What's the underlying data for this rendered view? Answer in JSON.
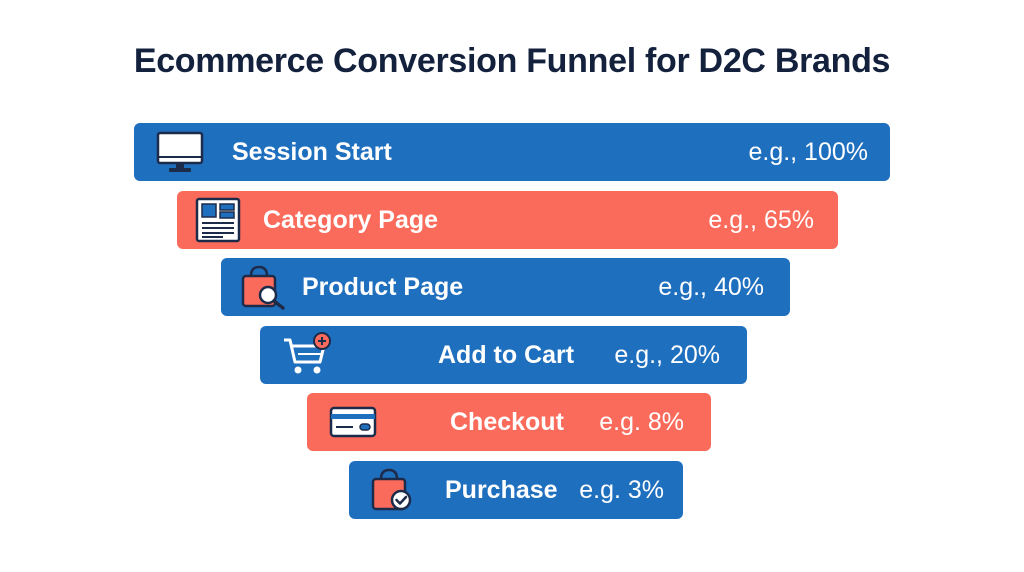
{
  "title": "Ecommerce Conversion Funnel for D2C Brands",
  "stages": [
    {
      "label": "Session Start",
      "value": "e.g., 100%",
      "icon": "monitor-icon"
    },
    {
      "label": "Category Page",
      "value": "e.g., 65%",
      "icon": "catalog-page-icon"
    },
    {
      "label": "Product Page",
      "value": "e.g., 40%",
      "icon": "shopping-bag-search-icon"
    },
    {
      "label": "Add to Cart",
      "value": "e.g., 20%",
      "icon": "cart-plus-icon"
    },
    {
      "label": "Checkout",
      "value": "e.g. 8%",
      "icon": "credit-card-icon"
    },
    {
      "label": "Purchase",
      "value": "e.g. 3%",
      "icon": "shopping-bag-check-icon"
    }
  ],
  "colors": {
    "blue": "#1f6fbf",
    "coral": "#fb6b5b",
    "title": "#14213d",
    "icon_outline": "#1d2b4a",
    "icon_fill": "#fb6b5b"
  }
}
